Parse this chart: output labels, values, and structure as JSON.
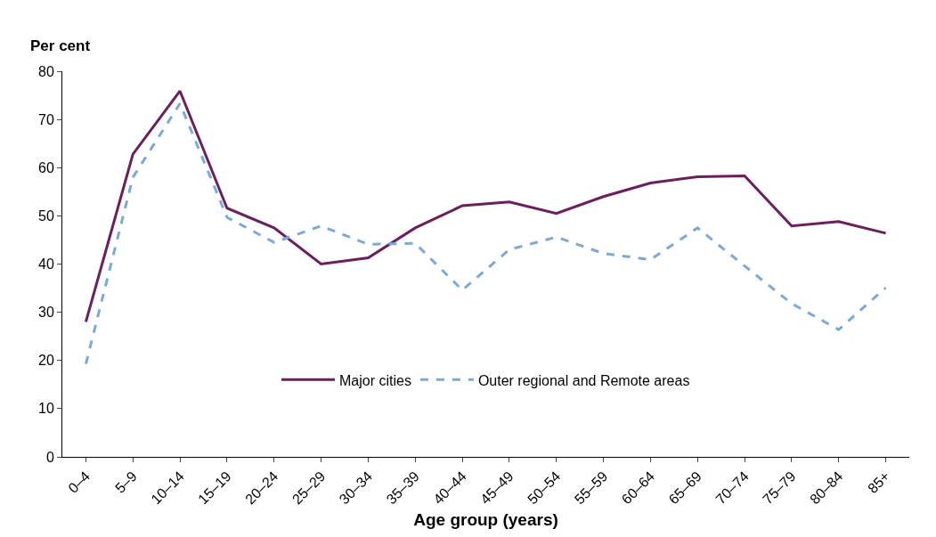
{
  "chart_data": {
    "type": "line",
    "ylabel": "Per cent",
    "xlabel": "Age group (years)",
    "categories": [
      "0–4",
      "5–9",
      "10–14",
      "15–19",
      "20–24",
      "25–29",
      "30–34",
      "35–39",
      "40–44",
      "45–49",
      "50–54",
      "55–59",
      "60–64",
      "65–69",
      "70–74",
      "75–79",
      "80–84",
      "85+"
    ],
    "series": [
      {
        "name": "Major cities",
        "color": "#6b1f5f",
        "line_style": "solid",
        "values": [
          28.0,
          62.8,
          75.9,
          51.6,
          47.5,
          40.0,
          41.3,
          47.5,
          52.1,
          52.9,
          50.5,
          54.0,
          56.8,
          58.1,
          58.3,
          47.9,
          48.8,
          46.4
        ]
      },
      {
        "name": "Outer regional and Remote areas",
        "color": "#7aa9dc",
        "line_style": "dashed",
        "values": [
          19.3,
          58.0,
          73.3,
          49.7,
          44.5,
          47.9,
          44.1,
          44.3,
          34.6,
          43.0,
          45.6,
          42.2,
          40.9,
          47.5,
          39.6,
          31.8,
          26.4,
          35.1
        ]
      }
    ],
    "ylim": [
      0,
      80
    ],
    "yticks": [
      0,
      10,
      20,
      30,
      40,
      50,
      60,
      70,
      80
    ],
    "legend": "bottom",
    "marker": "none"
  }
}
